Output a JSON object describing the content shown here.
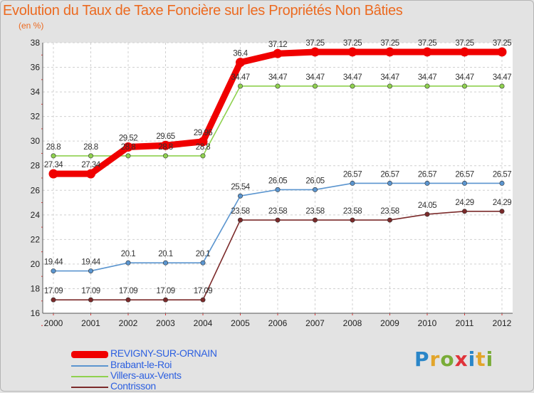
{
  "title": "Evolution du Taux de Taxe Foncière sur les Propriétés Non Bâties",
  "unit": "(en %)",
  "logo": {
    "text": "Proxiti",
    "colors": [
      "#2a86c8",
      "#e2a52b",
      "#79ac37",
      "#e0333a",
      "#2a86c8",
      "#e2a52b",
      "#79ac37"
    ]
  },
  "chart_data": {
    "type": "line",
    "title": "Evolution du Taux de Taxe Foncière sur les Propriétés Non Bâties",
    "ylabel": "(en %)",
    "xlabel": "",
    "ylim": [
      16,
      38
    ],
    "yticks": [
      "16",
      "18",
      "20",
      "22",
      "24",
      "26",
      "28",
      "30",
      "32",
      "34",
      "36",
      "38"
    ],
    "categories": [
      "2000",
      "2001",
      "2002",
      "2003",
      "2004",
      "2005",
      "2006",
      "2007",
      "2008",
      "2009",
      "2010",
      "2011",
      "2012"
    ],
    "grid": true,
    "series": [
      {
        "name": "REVIGNY-SUR-ORNAIN",
        "color": "#f00000",
        "values": [
          27.34,
          27.34,
          29.52,
          29.65,
          29.96,
          36.4,
          37.12,
          37.25,
          37.25,
          37.25,
          37.25,
          37.25,
          37.25
        ],
        "labels": [
          "27.34",
          "27.34",
          "29.52",
          "29.65",
          "29.96",
          "36.4",
          "37.12",
          "37.25",
          "37.25",
          "37.25",
          "37.25",
          "37.25",
          "37.25"
        ]
      },
      {
        "name": "Brabant-le-Roi",
        "color": "#5b95cf",
        "values": [
          19.44,
          19.44,
          20.1,
          20.1,
          20.1,
          25.54,
          26.05,
          26.05,
          26.57,
          26.57,
          26.57,
          26.57,
          26.57
        ],
        "labels": [
          "19.44",
          "19.44",
          "20.1",
          "20.1",
          "20.1",
          "25.54",
          "26.05",
          "26.05",
          "26.57",
          "26.57",
          "26.57",
          "26.57",
          "26.57"
        ]
      },
      {
        "name": "Villers-aux-Vents",
        "color": "#8fd14f",
        "values": [
          28.8,
          28.8,
          28.8,
          28.8,
          28.8,
          34.47,
          34.47,
          34.47,
          34.47,
          34.47,
          34.47,
          34.47,
          34.47
        ],
        "labels": [
          "28.8",
          "28.8",
          "28.8",
          "28.8",
          "28.8",
          "34.47",
          "34.47",
          "34.47",
          "34.47",
          "34.47",
          "34.47",
          "34.47",
          "34.47"
        ]
      },
      {
        "name": "Contrisson",
        "color": "#7b2a2a",
        "values": [
          17.09,
          17.09,
          17.09,
          17.09,
          17.09,
          23.58,
          23.58,
          23.58,
          23.58,
          23.58,
          24.05,
          24.29,
          24.29
        ],
        "labels": [
          "17.09",
          "17.09",
          "17.09",
          "17.09",
          "17.09",
          "23.58",
          "23.58",
          "23.58",
          "23.58",
          "23.58",
          "24.05",
          "24.29",
          "24.29"
        ]
      }
    ]
  }
}
